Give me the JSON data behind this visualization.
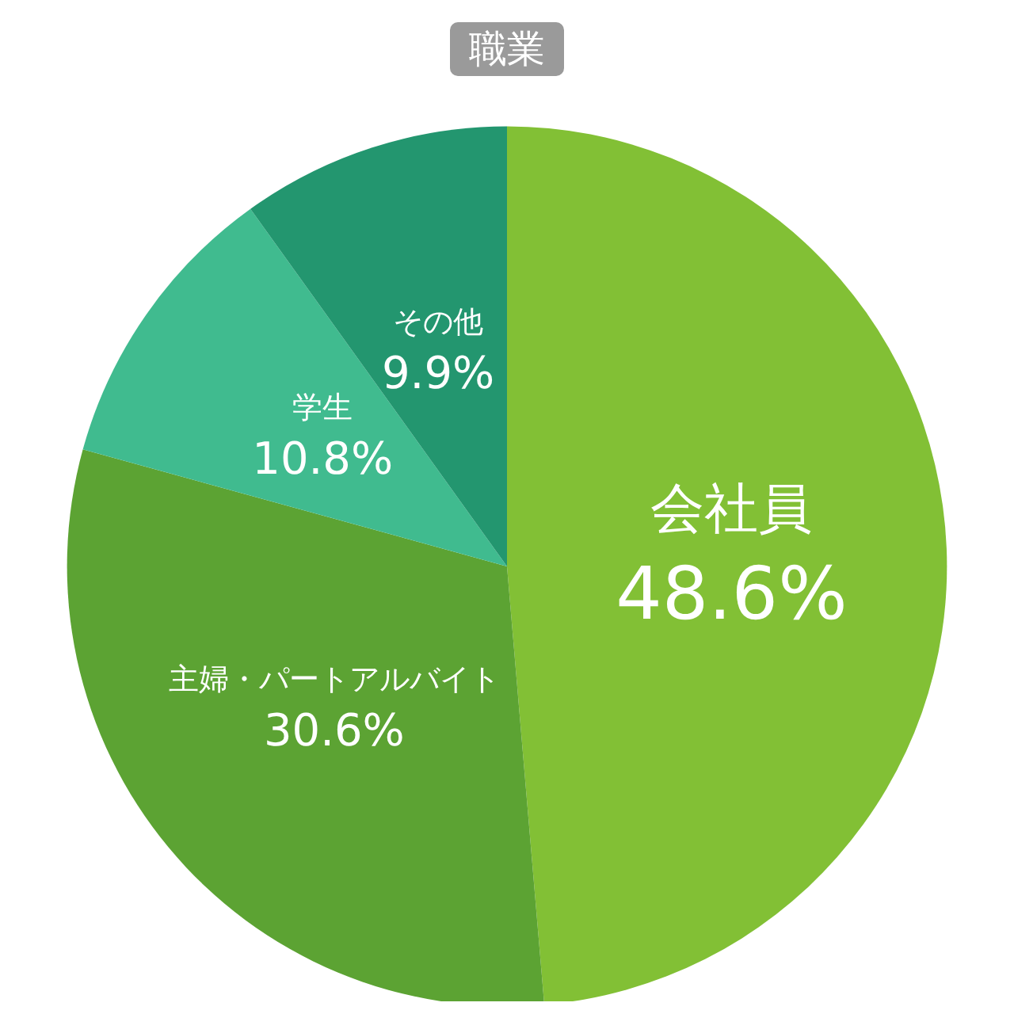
{
  "chart_data": {
    "type": "pie",
    "title": "職業",
    "categories": [
      "会社員",
      "主婦・パートアルバイト",
      "学生",
      "その他"
    ],
    "values": [
      48.6,
      30.6,
      10.8,
      9.9
    ],
    "colors": [
      "#82c035",
      "#5ca333",
      "#40bb8f",
      "#23966f"
    ],
    "value_labels": [
      "48.6%",
      "30.6%",
      "10.8%",
      "9.9%"
    ]
  }
}
